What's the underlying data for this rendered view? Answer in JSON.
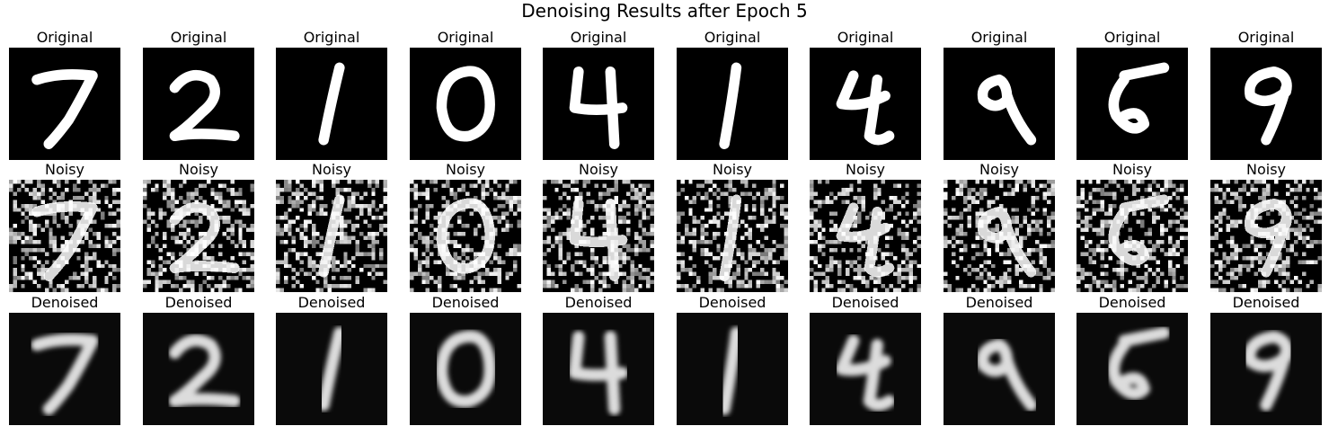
{
  "figure": {
    "title": "Denoising Results after Epoch 5",
    "columns": 10,
    "rows": [
      {
        "kind": "original",
        "label": "Original"
      },
      {
        "kind": "noisy",
        "label": "Noisy"
      },
      {
        "kind": "denoised",
        "label": "Denoised"
      }
    ]
  },
  "colors": {
    "background": "#ffffff",
    "image_background": "#000000",
    "stroke": "#ffffff"
  }
}
